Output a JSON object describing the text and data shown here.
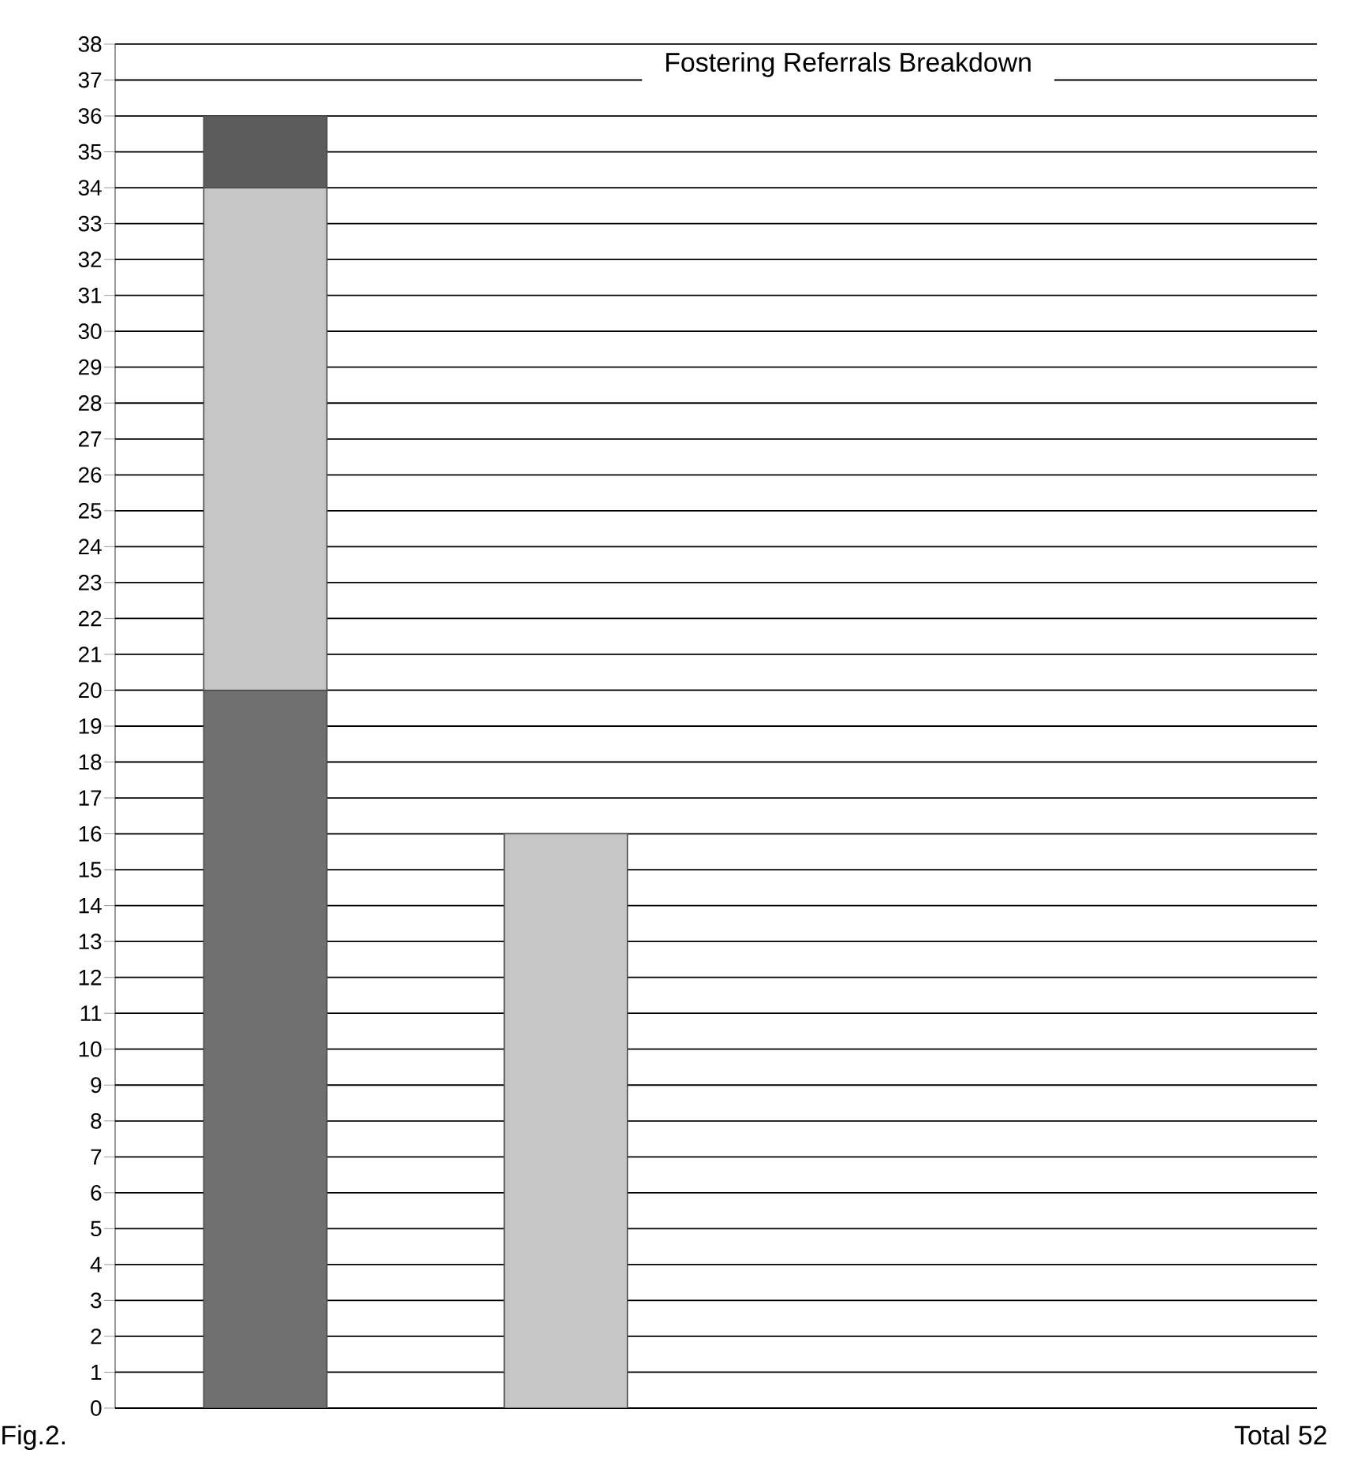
{
  "chart_data": {
    "type": "bar",
    "title": "Fostering Referrals Breakdown",
    "stacked": true,
    "categories": [
      null,
      null,
      null,
      null
    ],
    "series": [
      {
        "color": "#707070",
        "values": [
          20,
          null,
          null,
          null
        ]
      },
      {
        "color": "#c6c6c6",
        "values": [
          14,
          16,
          null,
          null
        ]
      },
      {
        "color": "#5c5c5c",
        "values": [
          2,
          null,
          null,
          null
        ]
      }
    ],
    "ylim": [
      0,
      38
    ],
    "yticks": [
      0,
      1,
      2,
      3,
      4,
      5,
      6,
      7,
      8,
      9,
      10,
      11,
      12,
      13,
      14,
      15,
      16,
      17,
      18,
      19,
      20,
      21,
      22,
      23,
      24,
      25,
      26,
      27,
      28,
      29,
      30,
      31,
      32,
      33,
      34,
      35,
      36,
      37,
      38
    ],
    "grid": "y",
    "annotations": [
      "Fig.2.",
      "Total 52"
    ]
  }
}
